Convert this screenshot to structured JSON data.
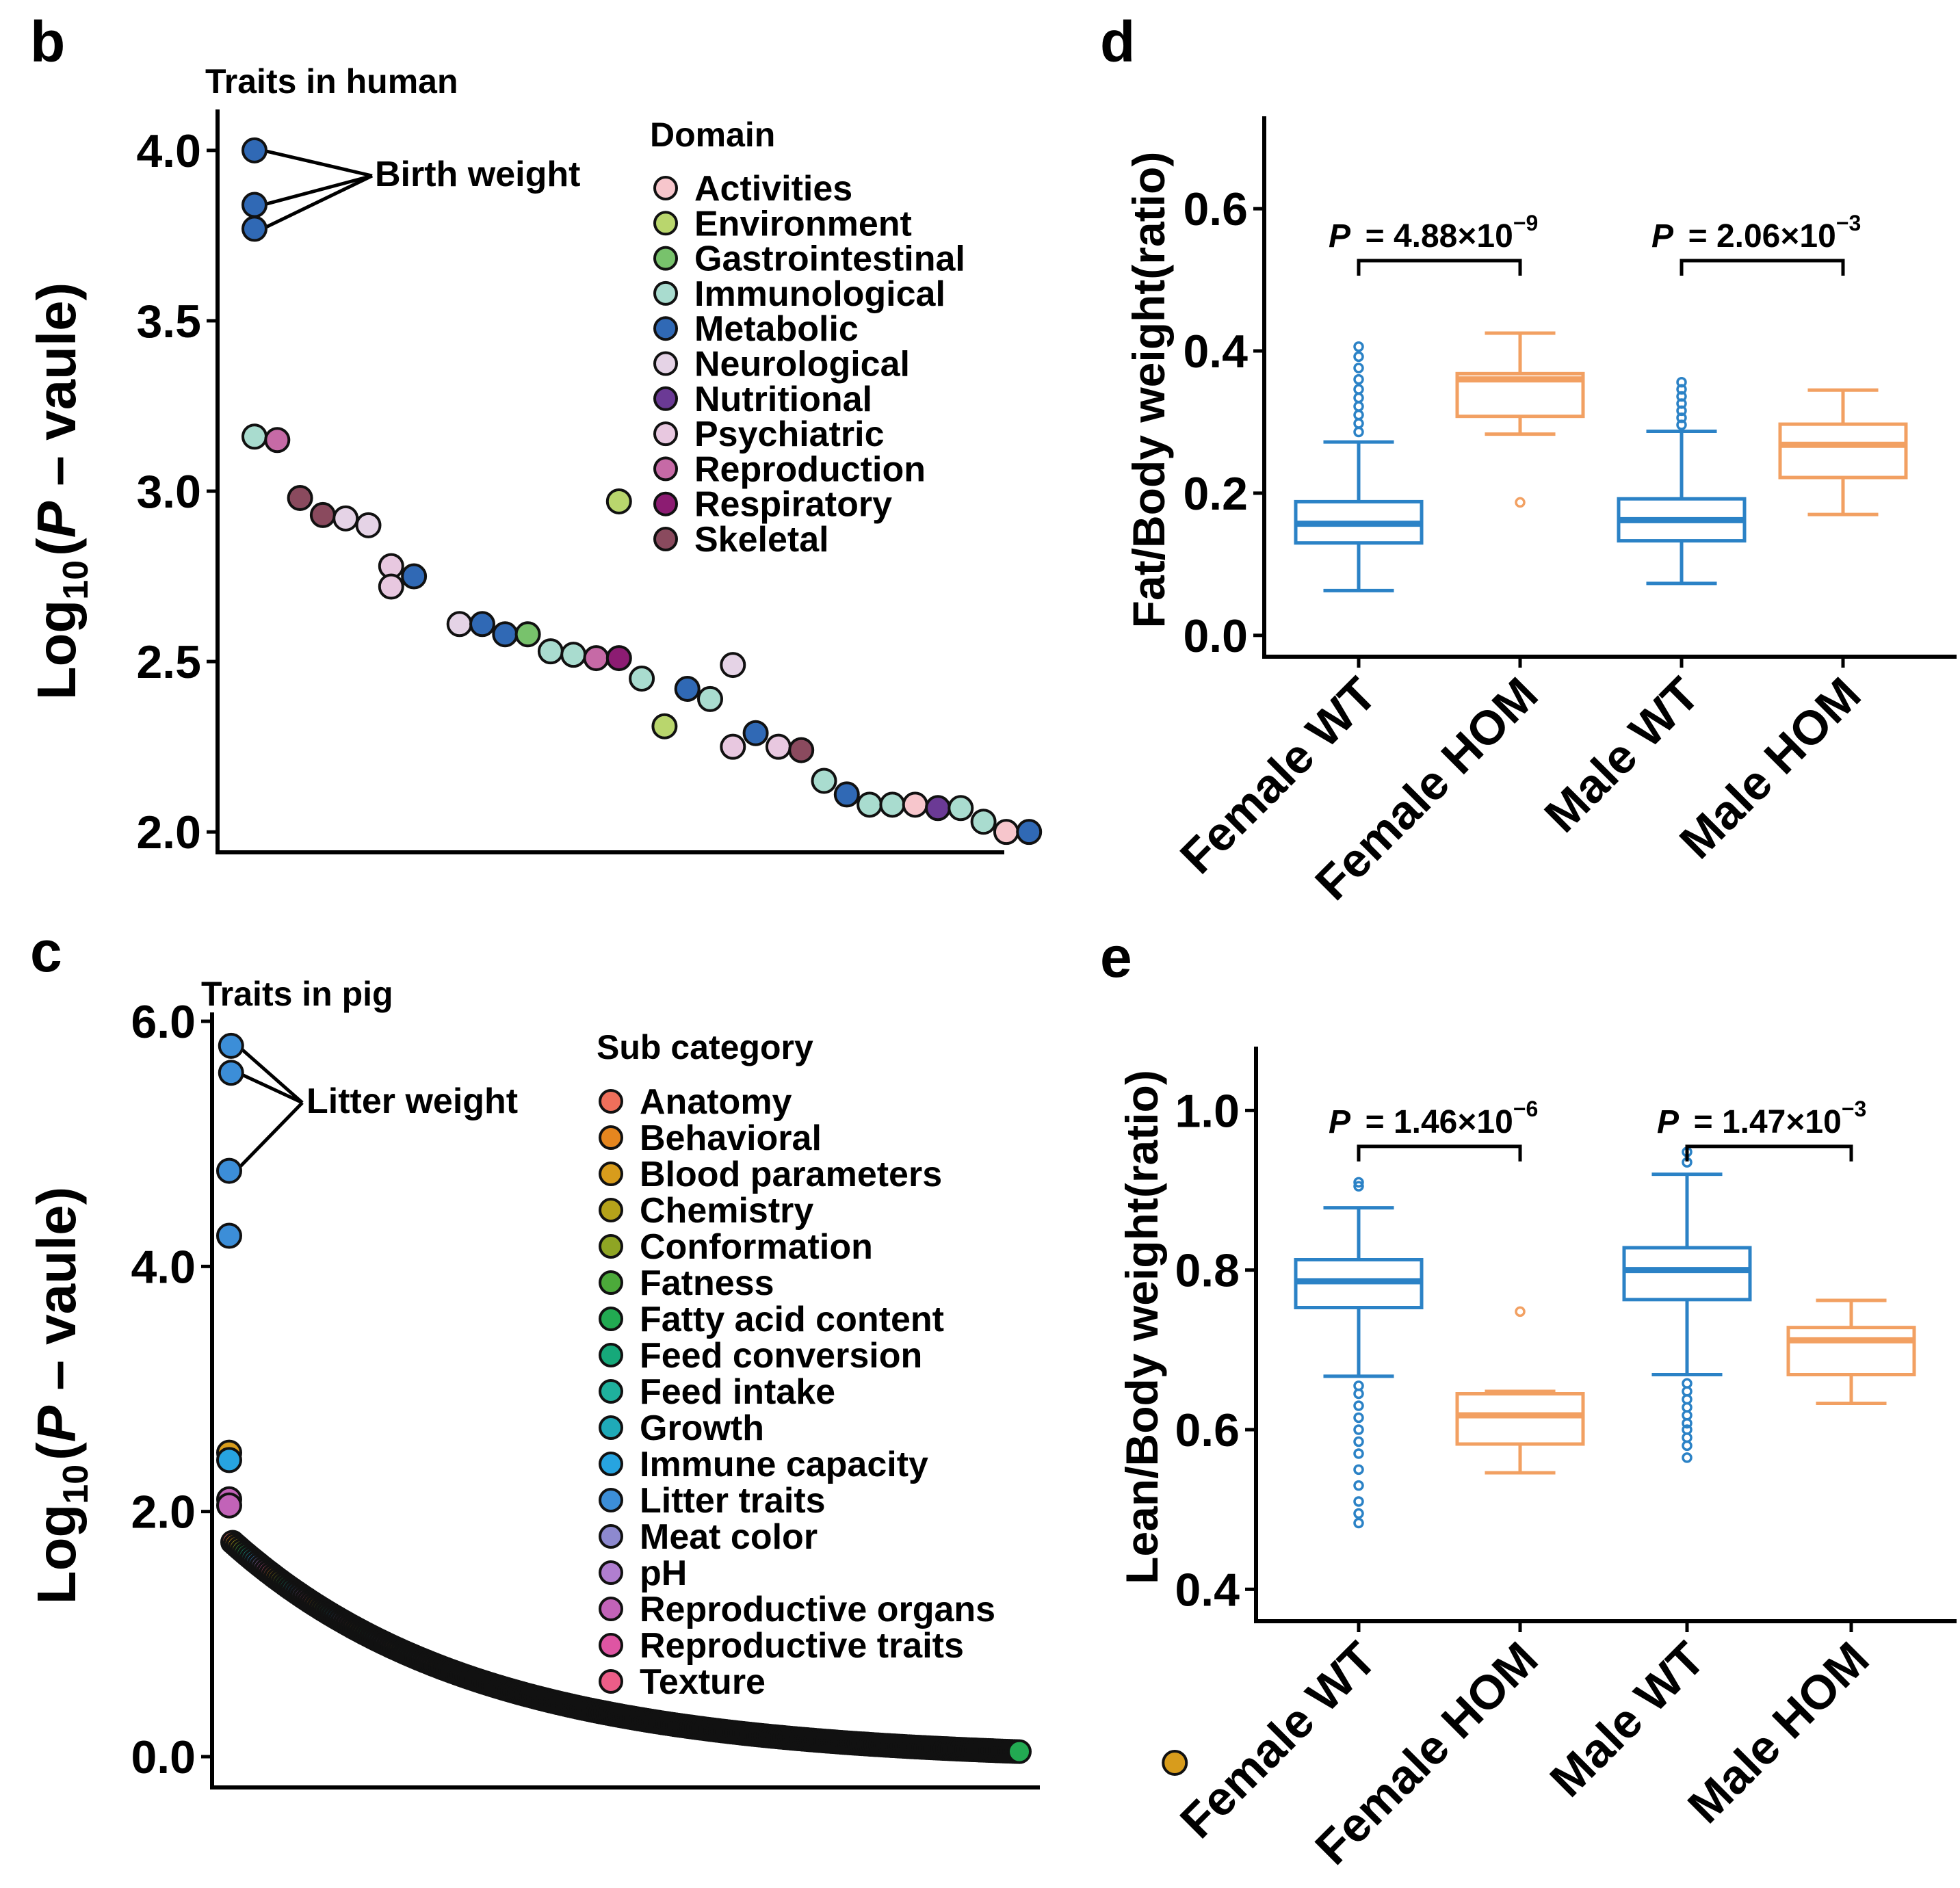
{
  "panel_labels": [
    "b",
    "c",
    "d",
    "e"
  ],
  "colors": {
    "box_wt": "#2b82c6",
    "box_hom": "#f2a062",
    "marker_outline": "#111111"
  },
  "chart_data": [
    {
      "panel": "b",
      "type": "scatter",
      "title": "Traits in human",
      "ylabel_parts": [
        "Log",
        "10",
        "(",
        "P",
        " – vaule",
        ")"
      ],
      "ylim": [
        1.9,
        4.08
      ],
      "yticks": [
        "2.0",
        "2.5",
        "3.0",
        "3.5",
        "4.0"
      ],
      "yticks_values": [
        2.0,
        2.5,
        3.0,
        3.5,
        4.0
      ],
      "annotation": "Birth weight",
      "legend_title": "Domain",
      "legend": [
        {
          "name": "Activities",
          "color": "#f7c6cc"
        },
        {
          "name": "Environment",
          "color": "#b9d66d"
        },
        {
          "name": "Gastrointestinal",
          "color": "#78c26c"
        },
        {
          "name": "Immunological",
          "color": "#a9dccf"
        },
        {
          "name": "Metabolic",
          "color": "#3069b5"
        },
        {
          "name": "Neurological",
          "color": "#e5d3e6"
        },
        {
          "name": "Nutritional",
          "color": "#6b3a95"
        },
        {
          "name": "Psychiatric",
          "color": "#e8c8e0"
        },
        {
          "name": "Reproduction",
          "color": "#c66aa6"
        },
        {
          "name": "Respiratory",
          "color": "#8c1c72"
        },
        {
          "name": "Skeletal",
          "color": "#8a4a5e"
        }
      ],
      "points": [
        {
          "rank": 1,
          "value": 4.0,
          "domain": "Metabolic",
          "label": "Birth weight"
        },
        {
          "rank": 1,
          "value": 3.84,
          "domain": "Metabolic",
          "label": "Birth weight"
        },
        {
          "rank": 1,
          "value": 3.77,
          "domain": "Metabolic",
          "label": "Birth weight"
        },
        {
          "rank": 1,
          "value": 3.16,
          "domain": "Immunological"
        },
        {
          "rank": 2,
          "value": 3.15,
          "domain": "Reproduction"
        },
        {
          "rank": 3,
          "value": 2.98,
          "domain": "Skeletal"
        },
        {
          "rank": 4,
          "value": 2.93,
          "domain": "Skeletal"
        },
        {
          "rank": 5,
          "value": 2.92,
          "domain": "Neurological"
        },
        {
          "rank": 6,
          "value": 2.9,
          "domain": "Neurological"
        },
        {
          "rank": 7,
          "value": 2.78,
          "domain": "Psychiatric"
        },
        {
          "rank": 7,
          "value": 2.72,
          "domain": "Psychiatric"
        },
        {
          "rank": 8,
          "value": 2.75,
          "domain": "Metabolic"
        },
        {
          "rank": 10,
          "value": 2.61,
          "domain": "Neurological"
        },
        {
          "rank": 11,
          "value": 2.61,
          "domain": "Metabolic"
        },
        {
          "rank": 12,
          "value": 2.58,
          "domain": "Metabolic"
        },
        {
          "rank": 13,
          "value": 2.58,
          "domain": "Gastrointestinal"
        },
        {
          "rank": 14,
          "value": 2.53,
          "domain": "Immunological"
        },
        {
          "rank": 15,
          "value": 2.52,
          "domain": "Immunological"
        },
        {
          "rank": 16,
          "value": 2.51,
          "domain": "Reproduction"
        },
        {
          "rank": 17,
          "value": 2.51,
          "domain": "Respiratory"
        },
        {
          "rank": 17,
          "value": 2.97,
          "domain": "Environment"
        },
        {
          "rank": 18,
          "value": 2.45,
          "domain": "Immunological"
        },
        {
          "rank": 19,
          "value": 2.31,
          "domain": "Environment"
        },
        {
          "rank": 20,
          "value": 2.42,
          "domain": "Metabolic"
        },
        {
          "rank": 21,
          "value": 2.39,
          "domain": "Immunological"
        },
        {
          "rank": 22,
          "value": 2.49,
          "domain": "Neurological"
        },
        {
          "rank": 22,
          "value": 2.25,
          "domain": "Psychiatric"
        },
        {
          "rank": 23,
          "value": 2.29,
          "domain": "Metabolic"
        },
        {
          "rank": 24,
          "value": 2.25,
          "domain": "Psychiatric"
        },
        {
          "rank": 25,
          "value": 2.24,
          "domain": "Skeletal"
        },
        {
          "rank": 26,
          "value": 2.15,
          "domain": "Immunological"
        },
        {
          "rank": 27,
          "value": 2.11,
          "domain": "Metabolic"
        },
        {
          "rank": 28,
          "value": 2.08,
          "domain": "Immunological"
        },
        {
          "rank": 29,
          "value": 2.08,
          "domain": "Immunological"
        },
        {
          "rank": 30,
          "value": 2.08,
          "domain": "Activities"
        },
        {
          "rank": 31,
          "value": 2.07,
          "domain": "Nutritional"
        },
        {
          "rank": 32,
          "value": 2.07,
          "domain": "Immunological"
        },
        {
          "rank": 33,
          "value": 2.03,
          "domain": "Immunological"
        },
        {
          "rank": 34,
          "value": 2.0,
          "domain": "Activities"
        },
        {
          "rank": 35,
          "value": 2.0,
          "domain": "Metabolic"
        }
      ]
    },
    {
      "panel": "c",
      "type": "scatter",
      "title": "Traits in pig",
      "ylabel_parts": [
        "Log",
        "10",
        "(",
        "P",
        " – vaule",
        ")"
      ],
      "ylim": [
        -0.2,
        6.0
      ],
      "yticks": [
        "0.0",
        "2.0",
        "4.0",
        "6.0"
      ],
      "yticks_values": [
        0,
        2,
        4,
        6
      ],
      "annotation": "Litter weight",
      "legend_title": "Sub category",
      "legend": [
        {
          "name": "Anatomy",
          "color": "#ef6f5b"
        },
        {
          "name": "Behavioral",
          "color": "#e5861f"
        },
        {
          "name": "Blood parameters",
          "color": "#d89c1c"
        },
        {
          "name": "Chemistry",
          "color": "#b5a21a"
        },
        {
          "name": "Conformation",
          "color": "#8fa524"
        },
        {
          "name": "Fatness",
          "color": "#4caa3a"
        },
        {
          "name": "Fatty acid content",
          "color": "#22aa52"
        },
        {
          "name": "Feed conversion",
          "color": "#16a97a"
        },
        {
          "name": "Feed intake",
          "color": "#1fb19d"
        },
        {
          "name": "Growth",
          "color": "#1faab8"
        },
        {
          "name": "Immune capacity",
          "color": "#27a4e0"
        },
        {
          "name": "Litter traits",
          "color": "#3c8ed8"
        },
        {
          "name": "Meat color",
          "color": "#8d89cf"
        },
        {
          "name": "pH",
          "color": "#b07ed0"
        },
        {
          "name": "Reproductive organs",
          "color": "#c263b8"
        },
        {
          "name": "Reproductive traits",
          "color": "#de55a3"
        },
        {
          "name": "Texture",
          "color": "#ec5d88"
        }
      ],
      "points": [
        {
          "rank": 2,
          "value": 5.8,
          "category": "Litter traits",
          "label": "Litter weight"
        },
        {
          "rank": 2,
          "value": 5.58,
          "category": "Litter traits",
          "label": "Litter weight"
        },
        {
          "rank": 1,
          "value": 4.78,
          "category": "Litter traits",
          "label": "Litter weight"
        },
        {
          "rank": 1,
          "value": 4.25,
          "category": "Litter traits"
        },
        {
          "rank": 1,
          "value": 2.48,
          "category": "Blood parameters"
        },
        {
          "rank": 1,
          "value": 2.42,
          "category": "Immune capacity"
        },
        {
          "rank": 1,
          "value": 2.1,
          "category": "Reproductive organs"
        },
        {
          "rank": 1,
          "value": 2.05,
          "category": "Reproductive organs"
        },
        {
          "rank": 500,
          "value": -0.05,
          "category": "Blood parameters"
        }
      ],
      "dense_curve": {
        "n_points": 330,
        "start": 1.75,
        "end": -0.03,
        "decay": 3.2,
        "note": "many overlapping trait points forming a decreasing curve"
      }
    },
    {
      "panel": "d",
      "type": "box",
      "ylabel": "Fat/Body weight(ratio)",
      "ylim": [
        -0.03,
        0.73
      ],
      "yticks": [
        "0.0",
        "0.2",
        "0.4",
        "0.6"
      ],
      "yticks_values": [
        0.0,
        0.2,
        0.4,
        0.6
      ],
      "categories": [
        "Female WT",
        "Female HOM",
        "Male WT",
        "Male HOM"
      ],
      "groups": [
        {
          "name": "Female WT",
          "color_key": "box_wt",
          "q1": 0.13,
          "median": 0.157,
          "q3": 0.188,
          "whisker_low": 0.063,
          "whisker_high": 0.272,
          "outliers": [
            0.286,
            0.298,
            0.31,
            0.322,
            0.334,
            0.346,
            0.36,
            0.376,
            0.392,
            0.406
          ]
        },
        {
          "name": "Female HOM",
          "color_key": "box_hom",
          "q1": 0.308,
          "median": 0.36,
          "q3": 0.368,
          "whisker_low": 0.283,
          "whisker_high": 0.425,
          "outliers": [
            0.187
          ]
        },
        {
          "name": "Male WT",
          "color_key": "box_wt",
          "q1": 0.133,
          "median": 0.162,
          "q3": 0.192,
          "whisker_low": 0.073,
          "whisker_high": 0.287,
          "outliers": [
            0.296,
            0.306,
            0.316,
            0.326,
            0.336,
            0.346,
            0.356
          ]
        },
        {
          "name": "Male HOM",
          "color_key": "box_hom",
          "q1": 0.222,
          "median": 0.268,
          "q3": 0.297,
          "whisker_low": 0.17,
          "whisker_high": 0.345,
          "outliers": []
        }
      ],
      "comparisons": [
        {
          "groups": [
            "Female WT",
            "Female HOM"
          ],
          "p_mantissa": "= 4.88×10",
          "p_exp": "−9",
          "y": 0.527
        },
        {
          "groups": [
            "Male WT",
            "Male HOM"
          ],
          "p_mantissa": "= 2.06×10",
          "p_exp": "−3",
          "y": 0.527
        }
      ]
    },
    {
      "panel": "e",
      "type": "box",
      "ylabel": "Lean/Body weight(ratio)",
      "ylim": [
        0.36,
        1.08
      ],
      "yticks": [
        "0.4",
        "0.6",
        "0.8",
        "1.0"
      ],
      "yticks_values": [
        0.4,
        0.6,
        0.8,
        1.0
      ],
      "categories": [
        "Female WT",
        "Female HOM",
        "Male WT",
        "Male HOM"
      ],
      "groups": [
        {
          "name": "Female WT",
          "color_key": "box_wt",
          "q1": 0.753,
          "median": 0.786,
          "q3": 0.813,
          "whisker_low": 0.667,
          "whisker_high": 0.878,
          "outliers": [
            0.905,
            0.91,
            0.655,
            0.645,
            0.63,
            0.615,
            0.6,
            0.585,
            0.57,
            0.55,
            0.53,
            0.51,
            0.495,
            0.483
          ]
        },
        {
          "name": "Female HOM",
          "color_key": "box_hom",
          "q1": 0.582,
          "median": 0.618,
          "q3": 0.645,
          "whisker_low": 0.546,
          "whisker_high": 0.648,
          "outliers": [
            0.748
          ]
        },
        {
          "name": "Male WT",
          "color_key": "box_wt",
          "q1": 0.763,
          "median": 0.8,
          "q3": 0.828,
          "whisker_low": 0.669,
          "whisker_high": 0.92,
          "outliers": [
            0.935,
            0.948,
            0.658,
            0.648,
            0.638,
            0.628,
            0.618,
            0.608,
            0.6,
            0.59,
            0.58,
            0.565
          ]
        },
        {
          "name": "Male HOM",
          "color_key": "box_hom",
          "q1": 0.669,
          "median": 0.712,
          "q3": 0.728,
          "whisker_low": 0.633,
          "whisker_high": 0.762,
          "outliers": []
        }
      ],
      "comparisons": [
        {
          "groups": [
            "Female WT",
            "Female HOM"
          ],
          "p_mantissa": "= 1.46×10",
          "p_exp": "−6",
          "y": 0.955
        },
        {
          "groups": [
            "Male WT",
            "Male HOM"
          ],
          "p_mantissa": "= 1.47×10",
          "p_exp": "−3",
          "y": 0.955
        }
      ]
    }
  ]
}
